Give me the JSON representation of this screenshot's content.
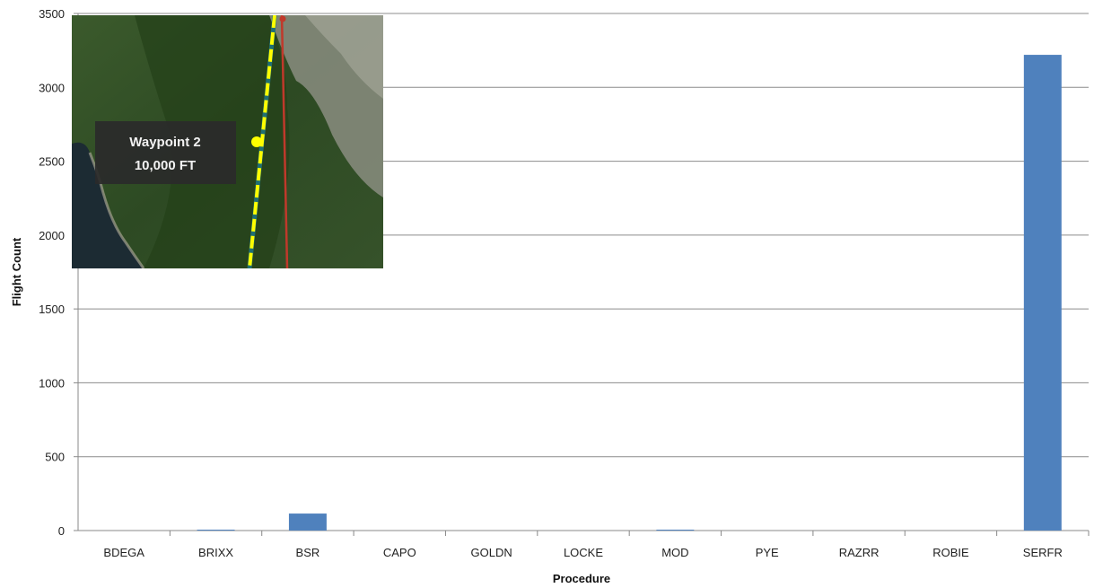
{
  "chart_data": {
    "type": "bar",
    "title": "",
    "xlabel": "Procedure",
    "ylabel": "Flight Count",
    "categories": [
      "BDEGA",
      "BRIXX",
      "BSR",
      "CAPO",
      "GOLDN",
      "LOCKE",
      "MOD",
      "PYE",
      "RAZRR",
      "ROBIE",
      "SERFR"
    ],
    "values": [
      0,
      6,
      115,
      0,
      0,
      0,
      6,
      0,
      0,
      0,
      3220
    ],
    "ylim": [
      0,
      3500
    ],
    "yticks": [
      0,
      500,
      1000,
      1500,
      2000,
      2500,
      3000,
      3500
    ],
    "grid": true,
    "legend": "none",
    "bar_color": "#4f81bd"
  },
  "inset": {
    "label_line1": "Waypoint 2",
    "label_line2": "10,000 FT",
    "route_color": "#ffff00",
    "track_color": "#c0392b"
  }
}
